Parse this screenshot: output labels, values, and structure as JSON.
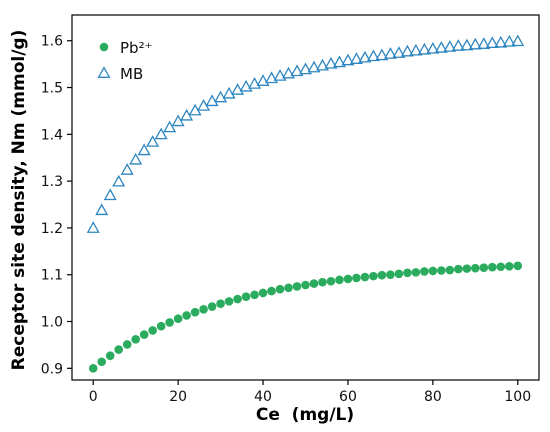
{
  "chart_data": {
    "type": "scatter",
    "title": "",
    "xlabel": "Ce  (mg/L)",
    "ylabel": "Receptor site density, Nm (mmol/g)",
    "xlim": [
      -5,
      105
    ],
    "ylim": [
      0.875,
      1.655
    ],
    "x_ticks": [
      0,
      20,
      40,
      60,
      80,
      100
    ],
    "y_ticks": [
      0.9,
      1.0,
      1.1,
      1.2,
      1.3,
      1.4,
      1.5,
      1.6
    ],
    "x_tick_labels": [
      "0",
      "20",
      "40",
      "60",
      "80",
      "100"
    ],
    "y_tick_labels": [
      "0.9",
      "1.0",
      "1.1",
      "1.2",
      "1.3",
      "1.4",
      "1.5",
      "1.6"
    ],
    "grid": false,
    "legend_position": "top-left",
    "x": [
      0,
      2,
      4,
      6,
      8,
      10,
      12,
      14,
      16,
      18,
      20,
      22,
      24,
      26,
      28,
      30,
      32,
      34,
      36,
      38,
      40,
      42,
      44,
      46,
      48,
      50,
      52,
      54,
      56,
      58,
      60,
      62,
      64,
      66,
      68,
      70,
      72,
      74,
      76,
      78,
      80,
      82,
      84,
      86,
      88,
      90,
      92,
      94,
      96,
      98,
      100
    ],
    "series": [
      {
        "name": "Pb²⁺",
        "marker": "filled-circle",
        "color": "#2aab5d",
        "values": [
          0.9,
          0.914,
          0.927,
          0.94,
          0.951,
          0.962,
          0.972,
          0.981,
          0.99,
          0.998,
          1.006,
          1.013,
          1.02,
          1.026,
          1.032,
          1.038,
          1.043,
          1.048,
          1.053,
          1.057,
          1.061,
          1.065,
          1.069,
          1.072,
          1.075,
          1.078,
          1.081,
          1.084,
          1.086,
          1.089,
          1.091,
          1.093,
          1.095,
          1.097,
          1.099,
          1.1,
          1.102,
          1.104,
          1.105,
          1.107,
          1.108,
          1.109,
          1.11,
          1.112,
          1.113,
          1.114,
          1.115,
          1.116,
          1.117,
          1.118,
          1.119
        ]
      },
      {
        "name": "MB",
        "marker": "open-triangle",
        "color": "#2e86c1",
        "values": [
          1.2,
          1.238,
          1.27,
          1.299,
          1.324,
          1.346,
          1.366,
          1.384,
          1.4,
          1.415,
          1.428,
          1.44,
          1.451,
          1.461,
          1.471,
          1.479,
          1.487,
          1.495,
          1.502,
          1.508,
          1.514,
          1.52,
          1.525,
          1.53,
          1.535,
          1.539,
          1.543,
          1.547,
          1.551,
          1.554,
          1.558,
          1.561,
          1.564,
          1.567,
          1.569,
          1.572,
          1.574,
          1.577,
          1.579,
          1.581,
          1.583,
          1.585,
          1.587,
          1.589,
          1.59,
          1.592,
          1.593,
          1.595,
          1.596,
          1.598,
          1.599
        ]
      }
    ]
  }
}
